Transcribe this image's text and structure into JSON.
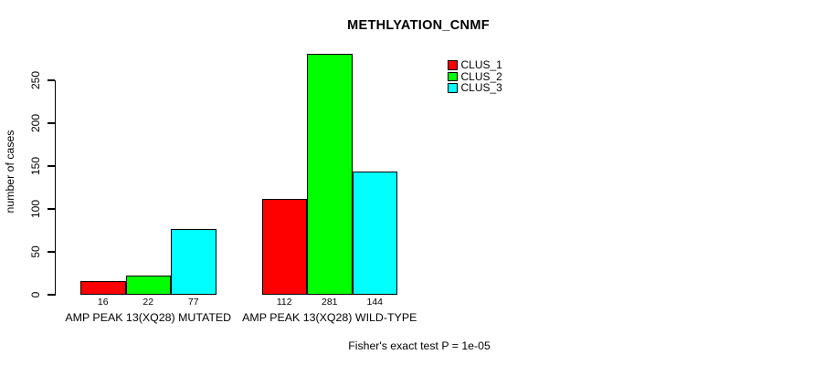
{
  "figure": {
    "background_color": "#ffffff",
    "text_color": "#000000"
  },
  "chart_data": {
    "type": "bar",
    "title": "METHLYATION_CNMF",
    "xlabel": "",
    "ylabel": "number of cases",
    "categories": [
      "AMP PEAK 13(XQ28) MUTATED",
      "AMP PEAK 13(XQ28) WILD-TYPE"
    ],
    "series": [
      {
        "name": "CLUS_1",
        "color": "#ff0000",
        "values": [
          16,
          112
        ]
      },
      {
        "name": "CLUS_2",
        "color": "#00ff00",
        "values": [
          22,
          281
        ]
      },
      {
        "name": "CLUS_3",
        "color": "#00ffff",
        "values": [
          77,
          144
        ]
      }
    ],
    "yticks": [
      0,
      50,
      100,
      150,
      200,
      250
    ],
    "ylim": [
      0,
      281
    ],
    "grid": false,
    "legend_position": "top-right",
    "bar_value_labels_shown": true,
    "annotation": "Fisher's exact test P = 1e-05"
  }
}
